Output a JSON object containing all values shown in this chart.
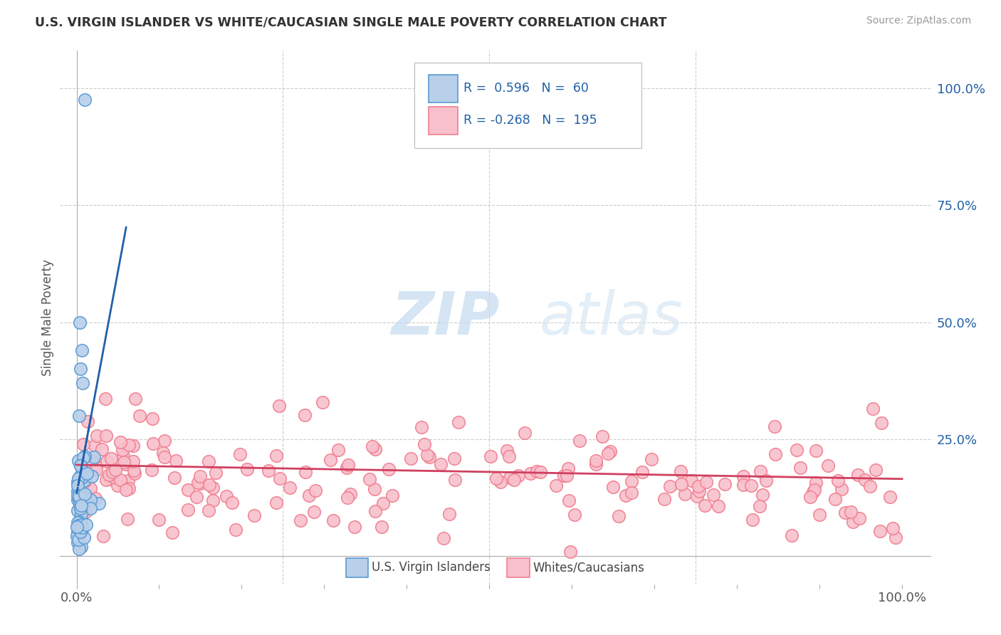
{
  "title": "U.S. VIRGIN ISLANDER VS WHITE/CAUCASIAN SINGLE MALE POVERTY CORRELATION CHART",
  "source": "Source: ZipAtlas.com",
  "ylabel": "Single Male Poverty",
  "r_blue": 0.596,
  "n_blue": 60,
  "r_pink": -0.268,
  "n_pink": 195,
  "blue_marker_face": "#b8d0ea",
  "blue_marker_edge": "#5b9bd5",
  "pink_marker_face": "#f8c0cc",
  "pink_marker_edge": "#f08090",
  "trend_blue_color": "#2060a8",
  "trend_pink_color": "#d04060",
  "watermark_zip": "ZIP",
  "watermark_atlas": "atlas",
  "legend_label_blue": "U.S. Virgin Islanders",
  "legend_label_pink": "Whites/Caucasians",
  "ytick_labels": [
    "100.0%",
    "75.0%",
    "50.0%",
    "25.0%"
  ],
  "ytick_values": [
    1.0,
    0.75,
    0.5,
    0.25
  ],
  "xtick_labels": [
    "0.0%",
    "100.0%"
  ],
  "background": "#ffffff",
  "grid_color": "#cccccc",
  "title_color": "#333333",
  "source_color": "#999999",
  "axis_color": "#555555"
}
